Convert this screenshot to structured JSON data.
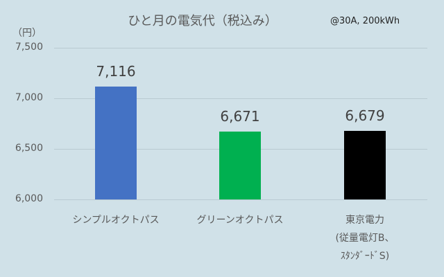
{
  "chart_data": {
    "type": "bar",
    "title": "ひと月の電気代（税込み）",
    "subtitle": "@30A, 200kWh",
    "ylabel": "（円）",
    "xlabel": "",
    "ylim": [
      6000,
      7500
    ],
    "yticks": [
      "7,500",
      "7,000",
      "6,500",
      "6,000"
    ],
    "grid": true,
    "legend": "none",
    "categories": [
      "シンプルオクトパス",
      "グリーンオクトパス",
      "東京電力(従量電灯B、スタンダードS)"
    ],
    "category_lines": [
      [
        "シンプルオクトパス"
      ],
      [
        "グリーンオクトパス"
      ],
      [
        "東京電力",
        "(従量電灯B、",
        "ｽﾀﾝﾀﾞｰﾄﾞS)"
      ]
    ],
    "values": [
      7116,
      6671,
      6679
    ],
    "value_labels": [
      "7,116",
      "6,671",
      "6,679"
    ],
    "colors": [
      "#4472c4",
      "#00b050",
      "#000000"
    ]
  }
}
